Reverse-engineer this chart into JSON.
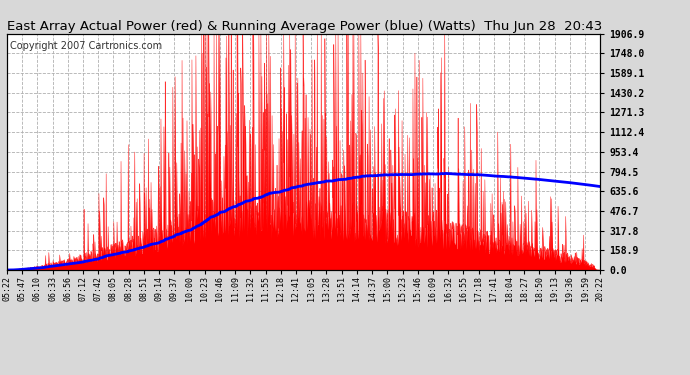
{
  "title": "East Array Actual Power (red) & Running Average Power (blue) (Watts)  Thu Jun 28  20:43",
  "copyright": "Copyright 2007 Cartronics.com",
  "ylabel_right_ticks": [
    0.0,
    158.9,
    317.8,
    476.7,
    635.6,
    794.5,
    953.4,
    1112.4,
    1271.3,
    1430.2,
    1589.1,
    1748.0,
    1906.9
  ],
  "ymax": 1906.9,
  "x_tick_labels": [
    "05:22",
    "05:47",
    "06:10",
    "06:33",
    "06:56",
    "07:12",
    "07:42",
    "08:05",
    "08:28",
    "08:51",
    "09:14",
    "09:37",
    "10:00",
    "10:23",
    "10:46",
    "11:09",
    "11:32",
    "11:55",
    "12:18",
    "12:41",
    "13:05",
    "13:28",
    "13:51",
    "14:14",
    "14:37",
    "15:00",
    "15:23",
    "15:46",
    "16:09",
    "16:32",
    "16:55",
    "17:18",
    "17:41",
    "18:04",
    "18:27",
    "18:50",
    "19:13",
    "19:36",
    "19:59",
    "20:22"
  ],
  "background_color": "#d8d8d8",
  "plot_bg_color": "#ffffff",
  "red_color": "#ff0000",
  "blue_color": "#0000ff",
  "grid_color": "#b0b0b0",
  "title_color": "#000000",
  "title_fontsize": 9.5,
  "copyright_fontsize": 7
}
